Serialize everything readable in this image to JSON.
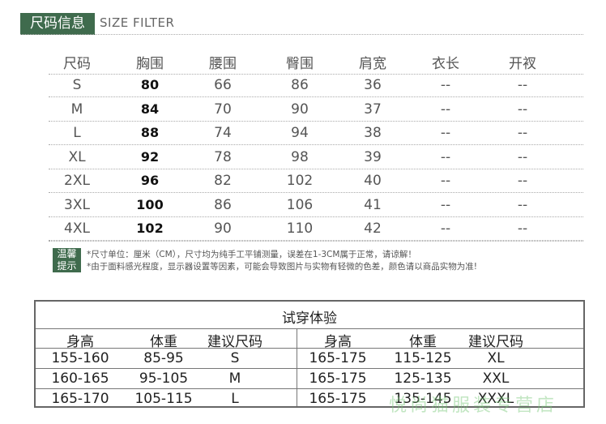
{
  "header": {
    "title": "尺码信息",
    "subtitle": "SIZE FILTER"
  },
  "size_table": {
    "columns": [
      "尺码",
      "胸围",
      "腰围",
      "臀围",
      "肩宽",
      "衣长",
      "开衩"
    ],
    "rows": [
      [
        "S",
        "80",
        "66",
        "86",
        "36",
        "--",
        "--"
      ],
      [
        "M",
        "84",
        "70",
        "90",
        "37",
        "--",
        "--"
      ],
      [
        "L",
        "88",
        "74",
        "94",
        "38",
        "--",
        "--"
      ],
      [
        "XL",
        "92",
        "78",
        "98",
        "39",
        "--",
        "--"
      ],
      [
        "2XL",
        "96",
        "82",
        "102",
        "40",
        "--",
        "--"
      ],
      [
        "3XL",
        "100",
        "86",
        "106",
        "41",
        "--",
        "--"
      ],
      [
        "4XL",
        "102",
        "90",
        "110",
        "42",
        "--",
        "--"
      ]
    ]
  },
  "tips": {
    "label_line1": "温馨",
    "label_line2": "提示",
    "lines": [
      "*尺寸单位：厘米（CM），尺寸均为纯手工平铺测量，误差在1-3CM属于正常，请谅解！",
      "*由于面料感光程度，显示器设置等因素，可能会导致图片与实物有轻微的色差，颜色请以商品实物为准!"
    ]
  },
  "fit_table": {
    "title": "试穿体验",
    "columns": [
      "身高",
      "体重",
      "建议尺码",
      "身高",
      "体重",
      "建议尺码"
    ],
    "rows": [
      [
        "155-160",
        "85-95",
        "S",
        "165-175",
        "115-125",
        "XL"
      ],
      [
        "160-165",
        "95-105",
        "M",
        "165-175",
        "125-135",
        "XXL"
      ],
      [
        "165-170",
        "105-115",
        "L",
        "165-175",
        "135-145",
        "XXXL"
      ]
    ]
  },
  "watermark": "悦尚猫服装专营店"
}
